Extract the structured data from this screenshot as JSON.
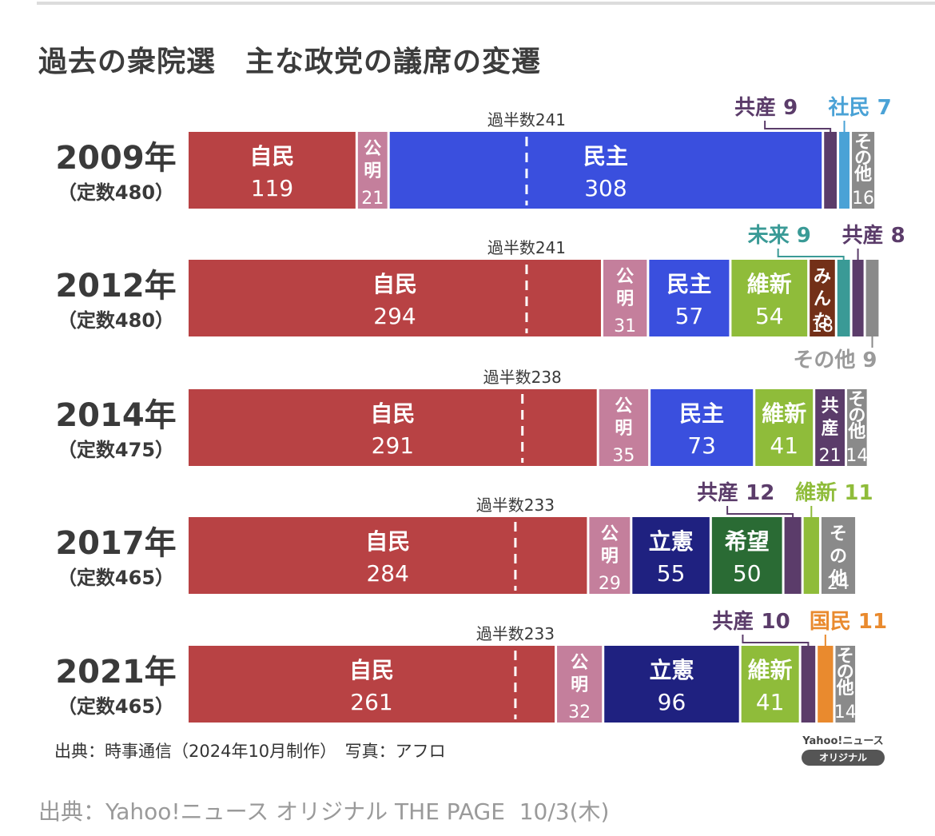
{
  "page": {
    "title": "過去の衆院選　主な政党の議席の変遷",
    "source": "出典：時事通信（2024年10月制作）　写真：アフロ",
    "badge_top": "Yahoo!ニュース",
    "badge_pill": "オリジナル",
    "footer": "出典：Yahoo!ニュース オリジナル THE PAGE  10/3(木)"
  },
  "chart_data": {
    "type": "bar",
    "orientation": "horizontal-stacked",
    "title": "過去の衆院選　主な政党の議席の変遷",
    "unit": "seats",
    "half_prefix": "過半数",
    "colors": {
      "自民": "#b84244",
      "公明": "#c47f9c",
      "民主": "#3a4fde",
      "立憲": "#1f2180",
      "維新": "#8fbc3a",
      "希望": "#2a6b34",
      "みんな": "#733018",
      "未来": "#3a9a96",
      "共産": "#5b3c6a",
      "社民": "#4aa2d6",
      "国民": "#e98a2e",
      "その他": "#8a8a8a"
    },
    "elections": [
      {
        "year": "2009年",
        "capacity_label": "（定数480）",
        "total": 480,
        "majority": 241,
        "parties": [
          {
            "name": "自民",
            "seats": 119,
            "style": "horizontal"
          },
          {
            "name": "公明",
            "seats": 21,
            "style": "vertical"
          },
          {
            "name": "民主",
            "seats": 308,
            "style": "horizontal"
          },
          {
            "name": "共産",
            "seats": 9,
            "style": "callout"
          },
          {
            "name": "社民",
            "seats": 7,
            "style": "callout"
          },
          {
            "name": "その他",
            "seats": 16,
            "style": "vertical"
          }
        ]
      },
      {
        "year": "2012年",
        "capacity_label": "（定数480）",
        "total": 480,
        "majority": 241,
        "parties": [
          {
            "name": "自民",
            "seats": 294,
            "style": "horizontal"
          },
          {
            "name": "公明",
            "seats": 31,
            "style": "vertical"
          },
          {
            "name": "民主",
            "seats": 57,
            "style": "horizontal"
          },
          {
            "name": "維新",
            "seats": 54,
            "style": "horizontal"
          },
          {
            "name": "みんな",
            "seats": 18,
            "style": "vertical"
          },
          {
            "name": "未来",
            "seats": 9,
            "style": "callout"
          },
          {
            "name": "共産",
            "seats": 8,
            "style": "callout"
          },
          {
            "name": "その他",
            "seats": 9,
            "style": "callout-below"
          }
        ]
      },
      {
        "year": "2014年",
        "capacity_label": "（定数475）",
        "total": 475,
        "majority": 238,
        "parties": [
          {
            "name": "自民",
            "seats": 291,
            "style": "horizontal"
          },
          {
            "name": "公明",
            "seats": 35,
            "style": "vertical"
          },
          {
            "name": "民主",
            "seats": 73,
            "style": "horizontal"
          },
          {
            "name": "維新",
            "seats": 41,
            "style": "horizontal"
          },
          {
            "name": "共産",
            "seats": 21,
            "style": "vertical"
          },
          {
            "name": "その他",
            "seats": 14,
            "style": "vertical"
          }
        ]
      },
      {
        "year": "2017年",
        "capacity_label": "（定数465）",
        "total": 465,
        "majority": 233,
        "parties": [
          {
            "name": "自民",
            "seats": 284,
            "style": "horizontal"
          },
          {
            "name": "公明",
            "seats": 29,
            "style": "vertical"
          },
          {
            "name": "立憲",
            "seats": 55,
            "style": "horizontal"
          },
          {
            "name": "希望",
            "seats": 50,
            "style": "horizontal"
          },
          {
            "name": "共産",
            "seats": 12,
            "style": "callout"
          },
          {
            "name": "維新",
            "seats": 11,
            "style": "callout"
          },
          {
            "name": "その他",
            "seats": 24,
            "style": "vertical"
          }
        ]
      },
      {
        "year": "2021年",
        "capacity_label": "（定数465）",
        "total": 465,
        "majority": 233,
        "parties": [
          {
            "name": "自民",
            "seats": 261,
            "style": "horizontal"
          },
          {
            "name": "公明",
            "seats": 32,
            "style": "vertical"
          },
          {
            "name": "立憲",
            "seats": 96,
            "style": "horizontal"
          },
          {
            "name": "維新",
            "seats": 41,
            "style": "horizontal"
          },
          {
            "name": "共産",
            "seats": 10,
            "style": "callout"
          },
          {
            "name": "国民",
            "seats": 11,
            "style": "callout"
          },
          {
            "name": "その他",
            "seats": 14,
            "style": "vertical"
          }
        ]
      }
    ]
  }
}
